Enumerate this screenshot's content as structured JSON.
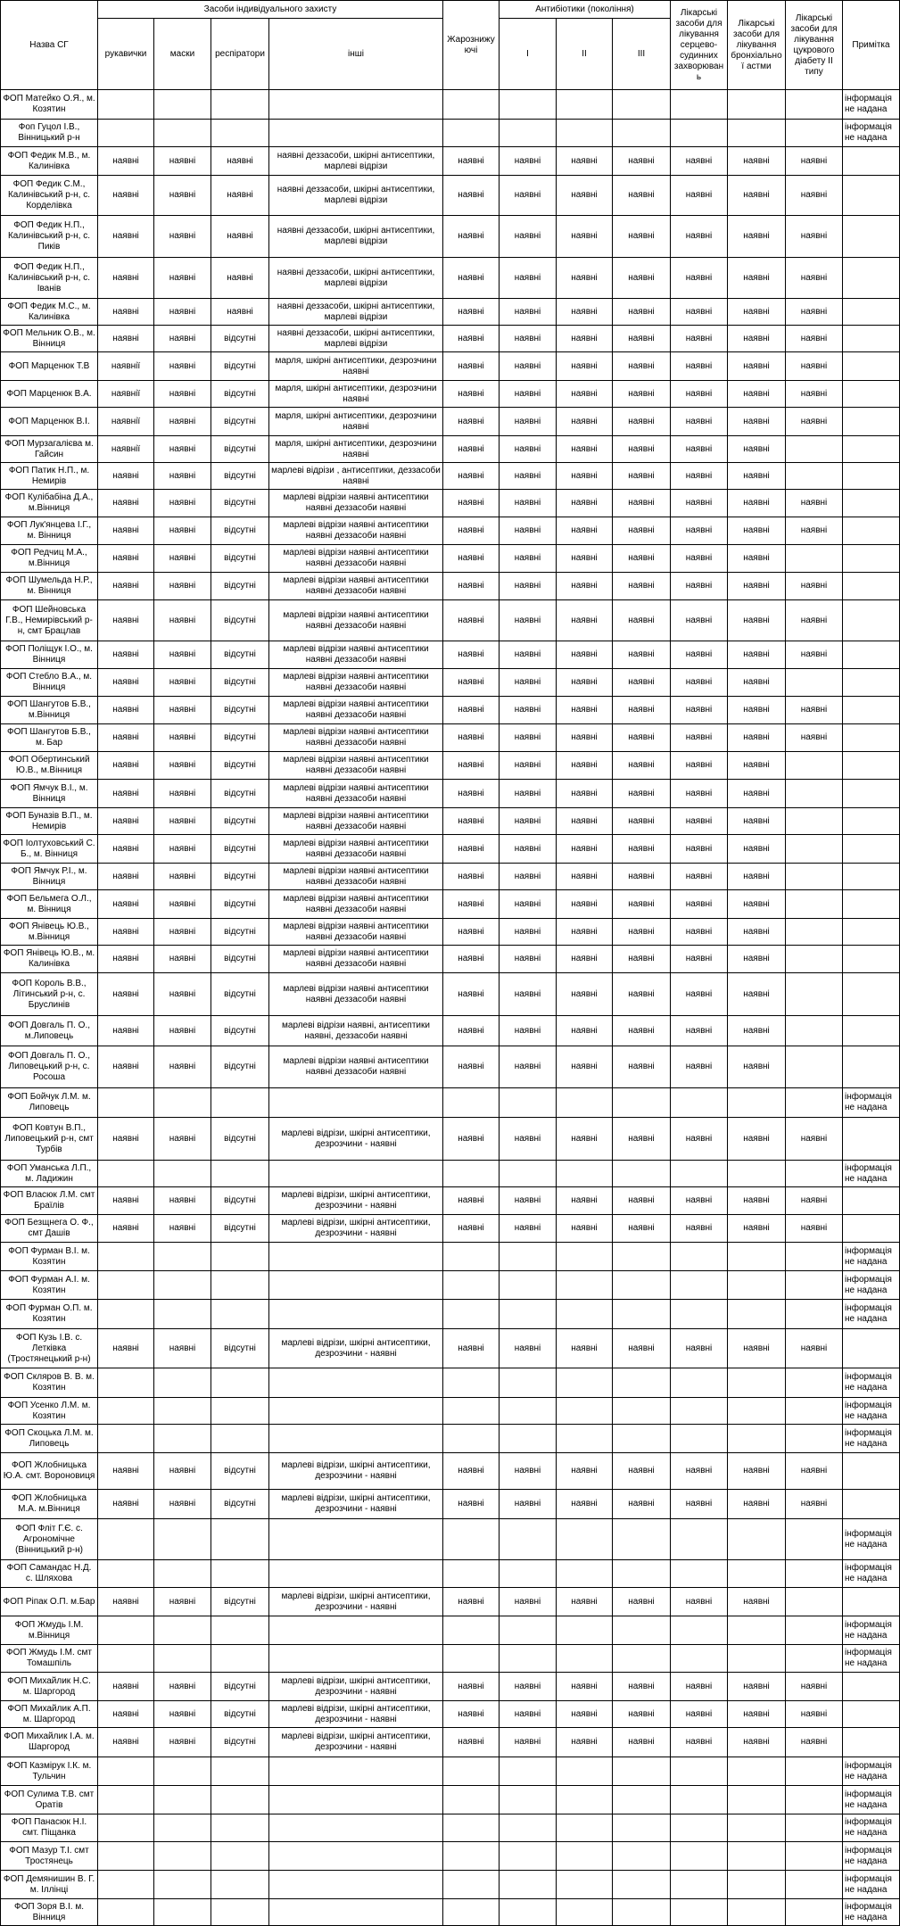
{
  "header": {
    "name": "Назва СГ",
    "ppe": "Засоби індивідуального захисту",
    "ppe_items": [
      "рукавички",
      "маски",
      "респіратори",
      "інші"
    ],
    "antipyretic": "Жарознижуючі",
    "antibiotics": "Антибіотики (покоління)",
    "generations": [
      "I",
      "II",
      "III"
    ],
    "cardio": "Лікарські засоби для лікування серцево-судинних захворювань",
    "asthma": "Лікарські засоби для лікування бронхіальної астми",
    "diabetes": "Лікарські засоби для лікування цукрового діабету ІІ типу",
    "note": "Примітка"
  },
  "rows": [
    [
      "ФОП Матейко О.Я., м. Козятин",
      null,
      null,
      null,
      null,
      null,
      null,
      null,
      null,
      null,
      null,
      null,
      "інформація не надана"
    ],
    [
      "Фоп Гуцол І.В., Вінницький р-н",
      null,
      null,
      null,
      null,
      null,
      null,
      null,
      null,
      null,
      null,
      null,
      "інформація не надана"
    ],
    [
      "ФОП Федик М.В., м. Калинівка",
      "наявні",
      "наявні",
      "наявні",
      "наявні деззасоби, шкірні антисептики, марлеві відрізи",
      "наявні",
      "наявні",
      "наявні",
      "наявні",
      "наявні",
      "наявні",
      "наявні",
      null
    ],
    [
      "ФОП Федик С.М., Калинівський р-н, с. Корделівка",
      "наявні",
      "наявні",
      "наявні",
      "наявні деззасоби, шкірні антисептики, марлеві відрізи",
      "наявні",
      "наявні",
      "наявні",
      "наявні",
      "наявні",
      "наявні",
      "наявні",
      null
    ],
    [
      "ФОП Федик Н.П., Калинівський р-н, с. Пиків",
      "наявні",
      "наявні",
      "наявні",
      "наявні деззасоби, шкірні антисептики, марлеві відрізи",
      "наявні",
      "наявні",
      "наявні",
      "наявні",
      "наявні",
      "наявні",
      "наявні",
      null
    ],
    [
      "ФОП Федик Н.П., Калинівський р-н, с. Іванів",
      "наявні",
      "наявні",
      "наявні",
      "наявні деззасоби, шкірні антисептики, марлеві відрізи",
      "наявні",
      "наявні",
      "наявні",
      "наявні",
      "наявні",
      "наявні",
      "наявні",
      null
    ],
    [
      "ФОП Федик М.С., м. Калинівка",
      "наявні",
      "наявні",
      "наявні",
      "наявні деззасоби, шкірні антисептики, марлеві відрізи",
      "наявні",
      "наявні",
      "наявні",
      "наявні",
      "наявні",
      "наявні",
      "наявні",
      null
    ],
    [
      "ФОП Мельник О.В., м. Вінниця",
      "наявні",
      "наявні",
      "відсутні",
      "наявні деззасоби, шкірні антисептики, марлеві відрізи",
      "наявні",
      "наявні",
      "наявні",
      "наявні",
      "наявні",
      "наявні",
      "наявні",
      null
    ],
    [
      "ФОП Марценюк Т.В",
      "наявнії",
      "наявні",
      "відсутні",
      "марля, шкірні антисептики, дезрозчини наявні",
      "наявні",
      "наявні",
      "наявні",
      "наявні",
      "наявні",
      "наявні",
      "наявні",
      null
    ],
    [
      "ФОП Марценюк В.А.",
      "наявнії",
      "наявні",
      "відсутні",
      "марля, шкірні антисептики, дезрозчини наявні",
      "наявні",
      "наявні",
      "наявні",
      "наявні",
      "наявні",
      "наявні",
      "наявні",
      null
    ],
    [
      "ФОП Марценюк В.І.",
      "наявнії",
      "наявні",
      "відсутні",
      "марля, шкірні антисептики, дезрозчини наявні",
      "наявні",
      "наявні",
      "наявні",
      "наявні",
      "наявні",
      "наявні",
      "наявні",
      null
    ],
    [
      "ФОП Мурзагалієва м. Гайсин",
      "наявнії",
      "наявні",
      "відсутні",
      "марля, шкірні антисептики, дезрозчини наявні",
      "наявні",
      "наявні",
      "наявні",
      "наявні",
      "наявні",
      "наявні",
      null,
      null
    ],
    [
      "ФОП Патик Н.П., м. Немирів",
      "наявні",
      "наявні",
      "відсутні",
      "марлеві відрізи , антисептики, деззасоби наявні",
      "наявні",
      "наявні",
      "наявні",
      "наявні",
      "наявні",
      "наявні",
      null,
      null
    ],
    [
      "ФОП Кулібабіна Д.А., м.Вінниця",
      "наявні",
      "наявні",
      "відсутні",
      "марлеві відрізи наявні антисептики наявні деззасоби наявні",
      "наявні",
      "наявні",
      "наявні",
      "наявні",
      "наявні",
      "наявні",
      "наявні",
      null
    ],
    [
      "ФОП Лук'янцева І.Г., м. Вінниця",
      "наявні",
      "наявні",
      "відсутні",
      "марлеві відрізи наявні антисептики наявні деззасоби наявні",
      "наявні",
      "наявні",
      "наявні",
      "наявні",
      "наявні",
      "наявні",
      "наявні",
      null
    ],
    [
      "ФОП Редчиц М.А., м.Вінниця",
      "наявні",
      "наявні",
      "відсутні",
      "марлеві відрізи наявні антисептики наявні деззасоби наявні",
      "наявні",
      "наявні",
      "наявні",
      "наявні",
      "наявні",
      "наявні",
      null,
      null
    ],
    [
      "ФОП Шумельда Н.Р., м. Вінниця",
      "наявні",
      "наявні",
      "відсутні",
      "марлеві відрізи наявні антисептики наявні деззасоби наявні",
      "наявні",
      "наявні",
      "наявні",
      "наявні",
      "наявні",
      "наявні",
      "наявні",
      null
    ],
    [
      "ФОП Шейновська Г.В., Немирівський р-н, смт Брацлав",
      "наявні",
      "наявні",
      "відсутні",
      "марлеві відрізи наявні антисептики наявні деззасоби наявні",
      "наявні",
      "наявні",
      "наявні",
      "наявні",
      "наявні",
      "наявні",
      "наявні",
      null
    ],
    [
      "ФОП Поліщук І.О., м. Вінниця",
      "наявні",
      "наявні",
      "відсутні",
      "марлеві відрізи наявні антисептики наявні деззасоби наявні",
      "наявні",
      "наявні",
      "наявні",
      "наявні",
      "наявні",
      "наявні",
      "наявні",
      null
    ],
    [
      "ФОП Стебло В.А., м. Вінниця",
      "наявні",
      "наявні",
      "відсутні",
      "марлеві відрізи наявні антисептики наявні деззасоби наявні",
      "наявні",
      "наявні",
      "наявні",
      "наявні",
      "наявні",
      "наявні",
      null,
      null
    ],
    [
      "ФОП Шангутов Б.В., м.Вінниця",
      "наявні",
      "наявні",
      "відсутні",
      "марлеві відрізи наявні антисептики наявні деззасоби наявні",
      "наявні",
      "наявні",
      "наявні",
      "наявні",
      "наявні",
      "наявні",
      "наявні",
      null
    ],
    [
      "ФОП Шангутов Б.В., м. Бар",
      "наявні",
      "наявні",
      "відсутні",
      "марлеві відрізи наявні антисептики наявні деззасоби наявні",
      "наявні",
      "наявні",
      "наявні",
      "наявні",
      "наявні",
      "наявні",
      "наявні",
      null
    ],
    [
      "ФОП Обертинський Ю.В., м.Вінниця",
      "наявні",
      "наявні",
      "відсутні",
      "марлеві відрізи наявні антисептики наявні деззасоби наявні",
      "наявні",
      "наявні",
      "наявні",
      "наявні",
      "наявні",
      "наявні",
      null,
      null
    ],
    [
      "ФОП Ямчук В.І., м. Вінниця",
      "наявні",
      "наявні",
      "відсутні",
      "марлеві відрізи наявні антисептики наявні деззасоби наявні",
      "наявні",
      "наявні",
      "наявні",
      "наявні",
      "наявні",
      "наявні",
      null,
      null
    ],
    [
      "ФОП Буназів В.П., м. Немирів",
      "наявні",
      "наявні",
      "відсутні",
      "марлеві відрізи наявні антисептики наявні деззасоби наявні",
      "наявні",
      "наявні",
      "наявні",
      "наявні",
      "наявні",
      "наявні",
      null,
      null
    ],
    [
      "ФОП Іолтуховський С. Б., м. Вінниця",
      "наявні",
      "наявні",
      "відсутні",
      "марлеві відрізи наявні антисептики наявні деззасоби наявні",
      "наявні",
      "наявні",
      "наявні",
      "наявні",
      "наявні",
      "наявні",
      null,
      null
    ],
    [
      "ФОП Ямчук Р.І., м. Вінниця",
      "наявні",
      "наявні",
      "відсутні",
      "марлеві відрізи наявні антисептики наявні деззасоби наявні",
      "наявні",
      "наявні",
      "наявні",
      "наявні",
      "наявні",
      "наявні",
      null,
      null
    ],
    [
      "ФОП Бельмега О.Л., м. Вінниця",
      "наявні",
      "наявні",
      "відсутні",
      "марлеві відрізи наявні антисептики наявні деззасоби наявні",
      "наявні",
      "наявні",
      "наявні",
      "наявні",
      "наявні",
      "наявні",
      null,
      null
    ],
    [
      "ФОП Янівець Ю.В., м.Вінниця",
      "наявні",
      "наявні",
      "відсутні",
      "марлеві відрізи наявні антисептики наявні деззасоби наявні",
      "наявні",
      "наявні",
      "наявні",
      "наявні",
      "наявні",
      "наявні",
      null,
      null
    ],
    [
      "ФОП Янівець Ю.В., м. Калинівка",
      "наявні",
      "наявні",
      "відсутні",
      "марлеві відрізи наявні антисептики наявні деззасоби наявні",
      "наявні",
      "наявні",
      "наявні",
      "наявні",
      "наявні",
      "наявні",
      null,
      null
    ],
    [
      "ФОП Король В.В., Літинський р-н, с. Бруслинів",
      "наявні",
      "наявні",
      "відсутні",
      "марлеві відрізи наявні антисептики наявні деззасоби наявні",
      "наявні",
      "наявні",
      "наявні",
      "наявні",
      "наявні",
      "наявні",
      null,
      null
    ],
    [
      "ФОП Довгаль П. О., м.Липовець",
      "наявні",
      "наявні",
      "відсутні",
      "марлеві відрізи наявні, антисептики наявні, деззасоби наявні",
      "наявні",
      "наявні",
      "наявні",
      "наявні",
      "наявні",
      "наявні",
      null,
      null
    ],
    [
      "ФОП Довгаль П. О., Липовецький р-н, с. Росоша",
      "наявні",
      "наявні",
      "відсутні",
      "марлеві відрізи наявні антисептики наявні деззасоби наявні",
      "наявні",
      "наявні",
      "наявні",
      "наявні",
      "наявні",
      "наявні",
      null,
      null
    ],
    [
      "ФОП Бойчук Л.М. м. Липовець",
      null,
      null,
      null,
      null,
      null,
      null,
      null,
      null,
      null,
      null,
      null,
      "інформація не надана"
    ],
    [
      "ФОП Ковтун В.П., Липовецький р-н, смт Турбів",
      "наявні",
      "наявні",
      "відсутні",
      "марлеві відрізи, шкірні антисептики, дезрозчини - наявні",
      "наявні",
      "наявні",
      "наявні",
      "наявні",
      "наявні",
      "наявні",
      "наявні",
      null
    ],
    [
      "ФОП Уманська Л.П., м. Ладижин",
      null,
      null,
      null,
      null,
      null,
      null,
      null,
      null,
      null,
      null,
      null,
      "інформація не надана"
    ],
    [
      "ФОП Власюк Л.М. смт Браїлів",
      "наявні",
      "наявні",
      "відсутні",
      "марлеві відрізи, шкірні антисептики, дезрозчини - наявні",
      "наявні",
      "наявні",
      "наявні",
      "наявні",
      "наявні",
      "наявні",
      "наявні",
      null
    ],
    [
      "ФОП Безщнега О. Ф., смт Дашів",
      "наявні",
      "наявні",
      "відсутні",
      "марлеві відрізи, шкірні антисептики, дезрозчини - наявні",
      "наявні",
      "наявні",
      "наявні",
      "наявні",
      "наявні",
      "наявні",
      "наявні",
      null
    ],
    [
      "ФОП Фурман В.І. м. Козятин",
      null,
      null,
      null,
      null,
      null,
      null,
      null,
      null,
      null,
      null,
      null,
      "інформація не надана"
    ],
    [
      "ФОП Фурман А.І. м. Козятин",
      null,
      null,
      null,
      null,
      null,
      null,
      null,
      null,
      null,
      null,
      null,
      "інформація не надана"
    ],
    [
      "ФОП Фурман О.П. м. Козятин",
      null,
      null,
      null,
      null,
      null,
      null,
      null,
      null,
      null,
      null,
      null,
      "інформація не надана"
    ],
    [
      "ФОП Кузь І.В. с. Летківка (Тростянецький р-н)",
      "наявні",
      "наявні",
      "відсутні",
      "марлеві відрізи, шкірні антисептики, дезрозчини - наявні",
      "наявні",
      "наявні",
      "наявні",
      "наявні",
      "наявні",
      "наявні",
      "наявні",
      null
    ],
    [
      "ФОП Скляров В. В. м. Козятин",
      null,
      null,
      null,
      null,
      null,
      null,
      null,
      null,
      null,
      null,
      null,
      "інформація не надана"
    ],
    [
      "ФОП Усенко Л.М. м. Козятин",
      null,
      null,
      null,
      null,
      null,
      null,
      null,
      null,
      null,
      null,
      null,
      "інформація не надана"
    ],
    [
      "ФОП Скоцька Л.М. м. Липовець",
      null,
      null,
      null,
      null,
      null,
      null,
      null,
      null,
      null,
      null,
      null,
      "інформація не надана"
    ],
    [
      "ФОП Жлобницька Ю.А. смт. Вороновиця",
      "наявні",
      "наявні",
      "відсутні",
      "марлеві відрізи, шкірні антисептики, дезрозчини - наявні",
      "наявні",
      "наявні",
      "наявні",
      "наявні",
      "наявні",
      "наявні",
      "наявні",
      null
    ],
    [
      "ФОП Жлобницька М.А. м.Вінниця",
      "наявні",
      "наявні",
      "відсутні",
      "марлеві відрізи, шкірні антисептики, дезрозчини - наявні",
      "наявні",
      "наявні",
      "наявні",
      "наявні",
      "наявні",
      "наявні",
      "наявні",
      null
    ],
    [
      "ФОП Фліт Г.Є. с. Агрономічне (Вінницький р-н)",
      null,
      null,
      null,
      null,
      null,
      null,
      null,
      null,
      null,
      null,
      null,
      "інформація не надана"
    ],
    [
      "ФОП Самандас Н.Д. с. Шляхова",
      null,
      null,
      null,
      null,
      null,
      null,
      null,
      null,
      null,
      null,
      null,
      "інформація не надана"
    ],
    [
      "ФОП Ріпак О.П. м.Бар",
      "наявні",
      "наявні",
      "відсутні",
      "марлеві відрізи, шкірні антисептики, дезрозчини - наявні",
      "наявні",
      "наявні",
      "наявні",
      "наявні",
      "наявні",
      "наявні",
      null,
      null
    ],
    [
      "ФОП Жмудь І.М. м.Вінниця",
      null,
      null,
      null,
      null,
      null,
      null,
      null,
      null,
      null,
      null,
      null,
      "інформація не надана"
    ],
    [
      "ФОП Жмудь І.М. смт Томашпіль",
      null,
      null,
      null,
      null,
      null,
      null,
      null,
      null,
      null,
      null,
      null,
      "інформація не надана"
    ],
    [
      "ФОП Михайлик Н.С. м. Шаргород",
      "наявні",
      "наявні",
      "відсутні",
      "марлеві відрізи, шкірні антисептики, дезрозчини - наявні",
      "наявні",
      "наявні",
      "наявні",
      "наявні",
      "наявні",
      "наявні",
      "наявні",
      null
    ],
    [
      "ФОП Михайлик А.П. м. Шаргород",
      "наявні",
      "наявні",
      "відсутні",
      "марлеві відрізи, шкірні антисептики, дезрозчини - наявні",
      "наявні",
      "наявні",
      "наявні",
      "наявні",
      "наявні",
      "наявні",
      "наявні",
      null
    ],
    [
      "ФОП Михайлик І.А. м. Шаргород",
      "наявні",
      "наявні",
      "відсутні",
      "марлеві відрізи, шкірні антисептики, дезрозчини - наявні",
      "наявні",
      "наявні",
      "наявні",
      "наявні",
      "наявні",
      "наявні",
      "наявні",
      null
    ],
    [
      "ФОП Казмірук І.К. м. Тульчин",
      null,
      null,
      null,
      null,
      null,
      null,
      null,
      null,
      null,
      null,
      null,
      "інформація не надана"
    ],
    [
      "ФОП Сулима Т.В. смт Оратів",
      null,
      null,
      null,
      null,
      null,
      null,
      null,
      null,
      null,
      null,
      null,
      "інформація не надана"
    ],
    [
      "ФОП Панасюк Н.І. смт. Піщанка",
      null,
      null,
      null,
      null,
      null,
      null,
      null,
      null,
      null,
      null,
      null,
      "інформація не надана"
    ],
    [
      "ФОП Мазур Т.І. смт Тростянець",
      null,
      null,
      null,
      null,
      null,
      null,
      null,
      null,
      null,
      null,
      null,
      "інформація не надана"
    ],
    [
      "ФОП Демянишин В. Г. м. Іллінці",
      null,
      null,
      null,
      null,
      null,
      null,
      null,
      null,
      null,
      null,
      null,
      "інформація не надана"
    ],
    [
      "ФОП Зоря В.І. м. Вінниця",
      null,
      null,
      null,
      null,
      null,
      null,
      null,
      null,
      null,
      null,
      null,
      "інформація не надана"
    ]
  ]
}
